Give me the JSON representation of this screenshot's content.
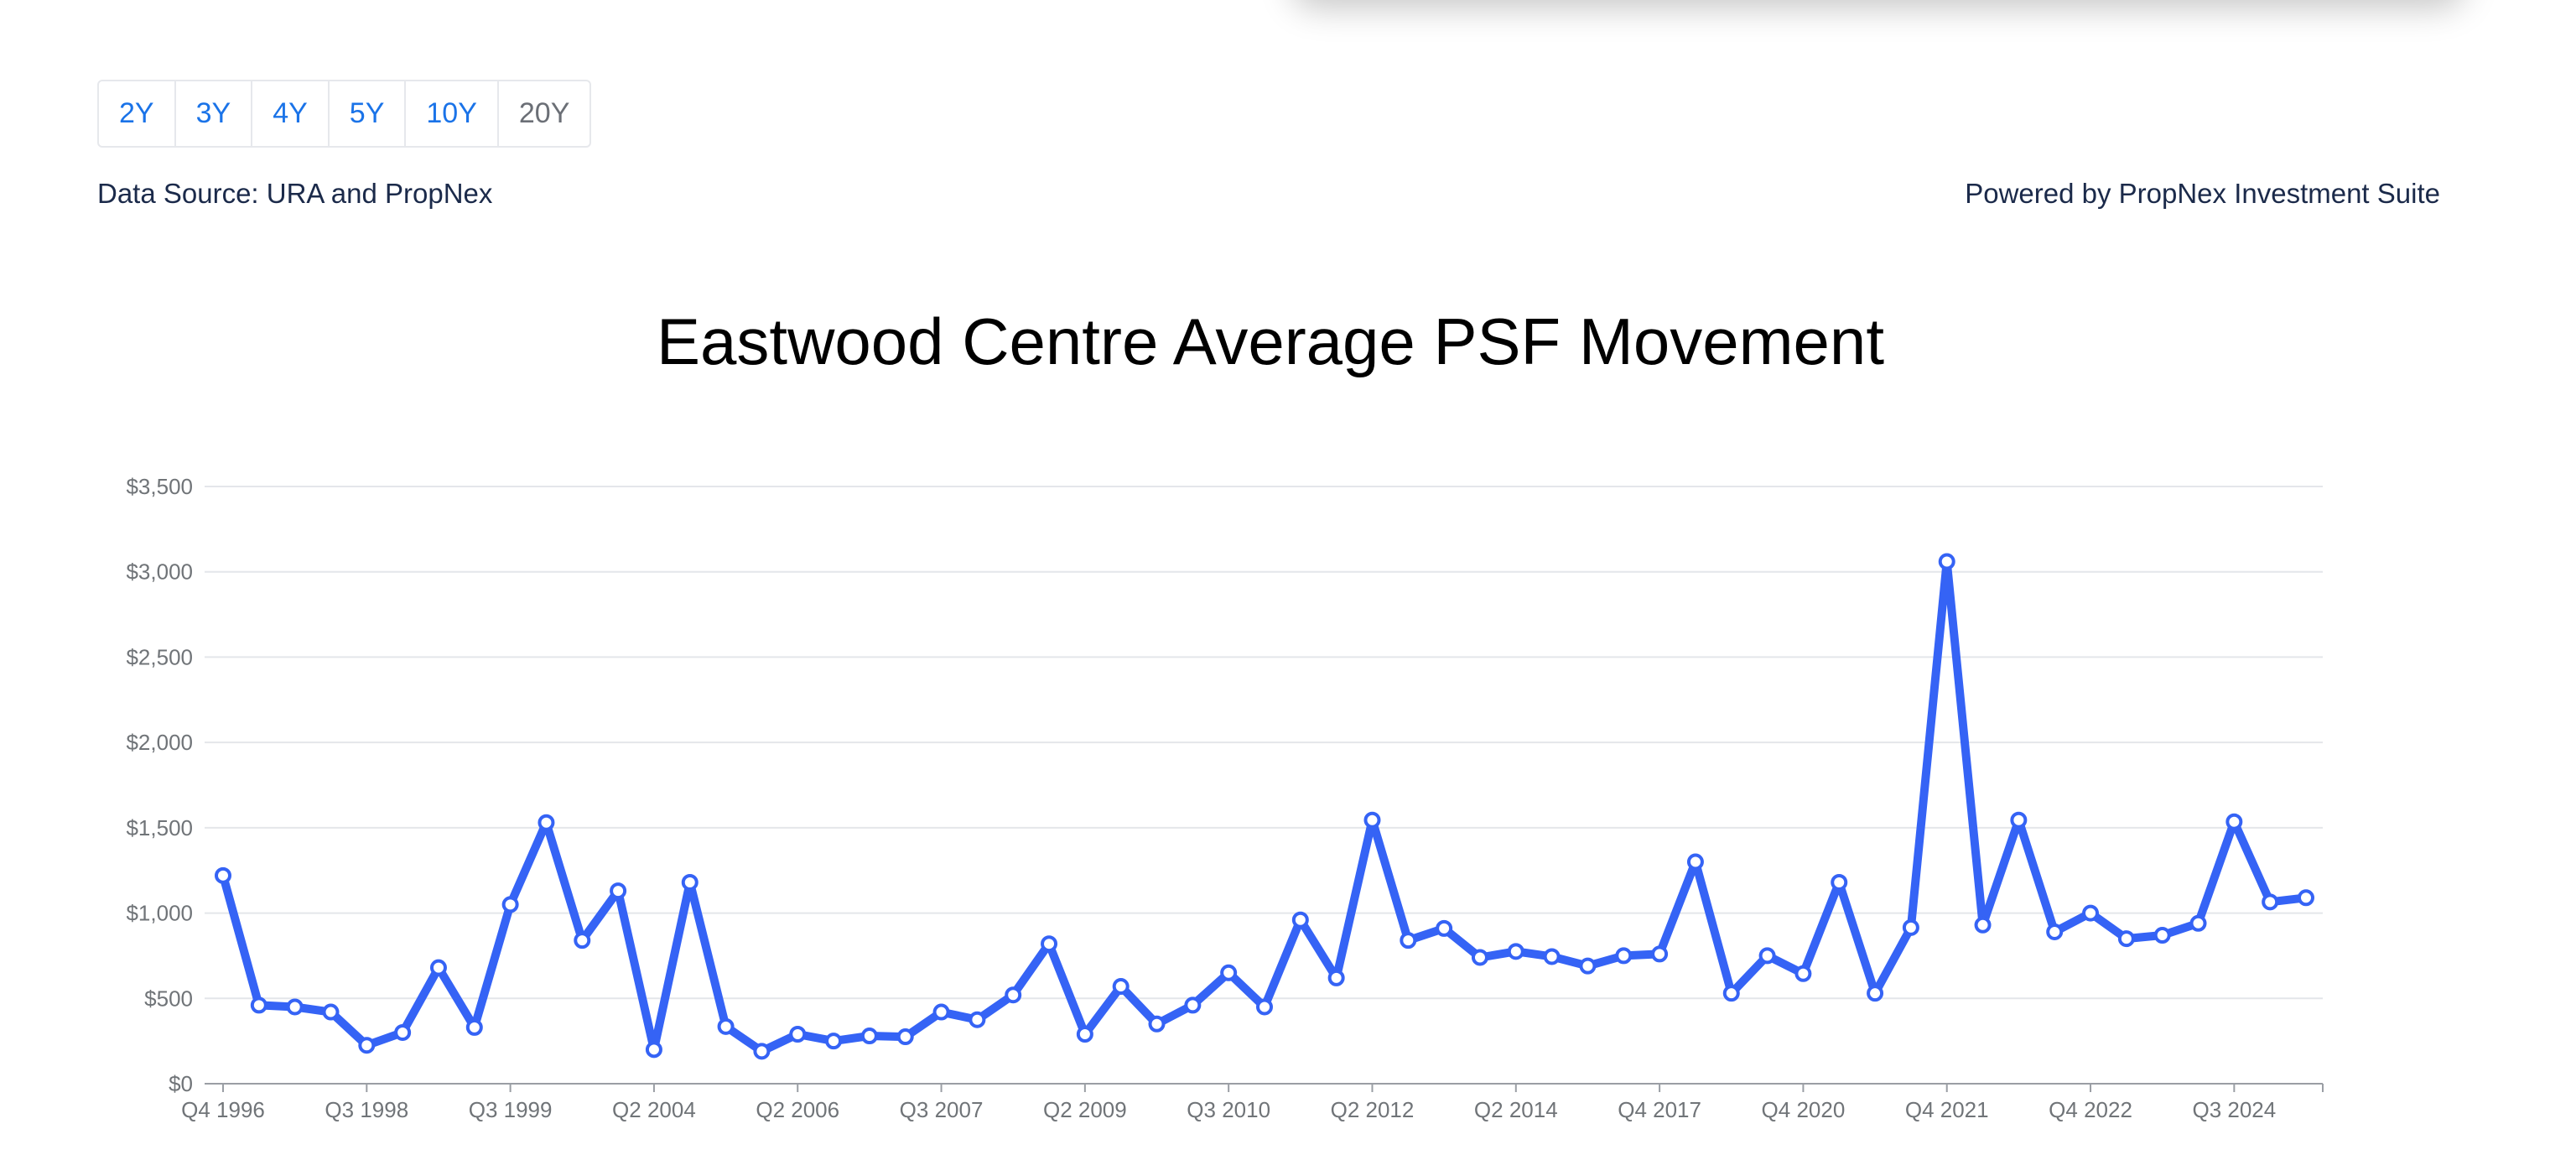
{
  "range_tabs": [
    {
      "label": "2Y",
      "active": false
    },
    {
      "label": "3Y",
      "active": false
    },
    {
      "label": "4Y",
      "active": false
    },
    {
      "label": "5Y",
      "active": false
    },
    {
      "label": "10Y",
      "active": false
    },
    {
      "label": "20Y",
      "active": true
    }
  ],
  "data_source": "Data Source: URA and PropNex",
  "powered_by": "Powered by PropNex Investment Suite",
  "chart_data": {
    "type": "line",
    "title": "Eastwood Centre Average PSF Movement",
    "xlabel": "",
    "ylabel": "",
    "ylim": [
      0,
      3500
    ],
    "y_ticks": [
      {
        "value": 0,
        "label": "$0"
      },
      {
        "value": 500,
        "label": "$500"
      },
      {
        "value": 1000,
        "label": "$1,000"
      },
      {
        "value": 1500,
        "label": "$1,500"
      },
      {
        "value": 2000,
        "label": "$2,000"
      },
      {
        "value": 2500,
        "label": "$2,500"
      },
      {
        "value": 3000,
        "label": "$3,000"
      },
      {
        "value": 3500,
        "label": "$3,500"
      }
    ],
    "x_tick_labels": [
      {
        "index": 0,
        "label": "Q4 1996"
      },
      {
        "index": 4,
        "label": "Q3 1998"
      },
      {
        "index": 8,
        "label": "Q3 1999"
      },
      {
        "index": 12,
        "label": "Q2 2004"
      },
      {
        "index": 16,
        "label": "Q2 2006"
      },
      {
        "index": 20,
        "label": "Q3 2007"
      },
      {
        "index": 24,
        "label": "Q2 2009"
      },
      {
        "index": 28,
        "label": "Q3 2010"
      },
      {
        "index": 32,
        "label": "Q2 2012"
      },
      {
        "index": 36,
        "label": "Q2 2014"
      },
      {
        "index": 40,
        "label": "Q4 2017"
      },
      {
        "index": 44,
        "label": "Q4 2020"
      },
      {
        "index": 48,
        "label": "Q4 2021"
      },
      {
        "index": 52,
        "label": "Q4 2022"
      },
      {
        "index": 56,
        "label": "Q3 2024"
      }
    ],
    "grid": true,
    "line_color": "#3563f5",
    "series": [
      {
        "values": [
          1220,
          460,
          450,
          420,
          225,
          300,
          680,
          330,
          1050,
          1530,
          840,
          1130,
          200,
          1180,
          335,
          190,
          290,
          250,
          280,
          275,
          420,
          375,
          520,
          820,
          290,
          570,
          350,
          460,
          650,
          450,
          960,
          620,
          1545,
          840,
          910,
          740,
          775,
          745,
          690,
          750,
          760,
          1300,
          530,
          750,
          645,
          1180,
          530,
          915,
          3060,
          930,
          1545,
          890,
          1000,
          850,
          870,
          940,
          1535,
          1065,
          1090
        ]
      }
    ]
  }
}
